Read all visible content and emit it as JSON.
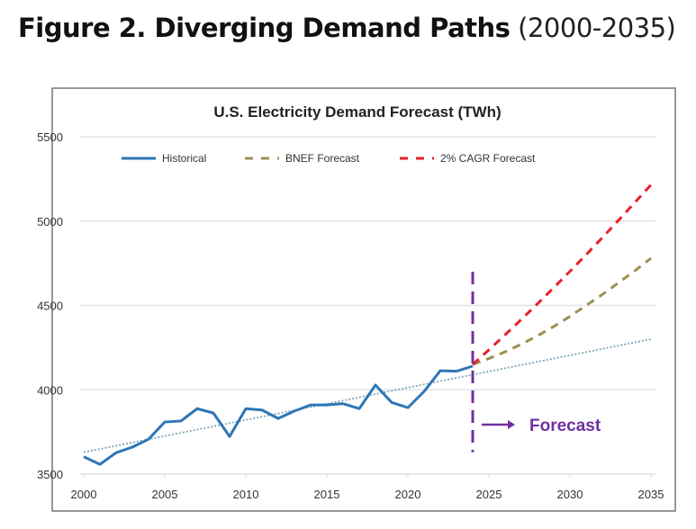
{
  "heading": {
    "bold": "Figure 2. Diverging Demand Paths",
    "normal": "(2000-2035)"
  },
  "chart_data": {
    "type": "line",
    "title": "U.S. Electricity Demand Forecast (TWh)",
    "xlabel": "",
    "ylabel": "",
    "xlim": [
      2000,
      2035
    ],
    "ylim": [
      3500,
      5500
    ],
    "x_ticks": [
      2000,
      2005,
      2010,
      2015,
      2020,
      2025,
      2030,
      2035
    ],
    "y_ticks": [
      3500,
      4000,
      4500,
      5000,
      5500
    ],
    "grid": "horizontal",
    "legend_position": "top",
    "series": [
      {
        "name": "Historical",
        "style": "solid",
        "color": "#2e75b6",
        "x": [
          2000,
          2001,
          2002,
          2003,
          2004,
          2005,
          2006,
          2007,
          2008,
          2009,
          2010,
          2011,
          2012,
          2013,
          2014,
          2015,
          2016,
          2017,
          2018,
          2019,
          2020,
          2021,
          2022,
          2023,
          2024
        ],
        "values": [
          3603,
          3558,
          3627,
          3660,
          3707,
          3809,
          3815,
          3888,
          3862,
          3723,
          3888,
          3880,
          3830,
          3874,
          3910,
          3910,
          3918,
          3888,
          4028,
          3925,
          3894,
          3990,
          4113,
          4110,
          4140
        ]
      },
      {
        "name": "BNEF Forecast",
        "style": "dashed",
        "color": "#9c9050",
        "x": [
          2024,
          2025,
          2026,
          2027,
          2028,
          2029,
          2030,
          2031,
          2032,
          2033,
          2034,
          2035
        ],
        "values": [
          4150,
          4185,
          4225,
          4270,
          4320,
          4375,
          4435,
          4500,
          4565,
          4635,
          4705,
          4780
        ]
      },
      {
        "name": "2% CAGR Forecast",
        "style": "dashed",
        "color": "#e8202a",
        "x": [
          2024,
          2025,
          2026,
          2027,
          2028,
          2029,
          2030,
          2031,
          2032,
          2033,
          2034,
          2035
        ],
        "values": [
          4150,
          4237,
          4326,
          4417,
          4510,
          4605,
          4702,
          4801,
          4902,
          5005,
          5110,
          5215
        ]
      }
    ],
    "trendline": {
      "style": "dotted",
      "color": "#7fa6b8",
      "x": [
        2000,
        2035
      ],
      "values": [
        3630,
        4300
      ]
    },
    "forecast_marker": {
      "x": 2024,
      "y_range": [
        3630,
        4700
      ],
      "color": "#7030a0",
      "label": "Forecast"
    }
  }
}
